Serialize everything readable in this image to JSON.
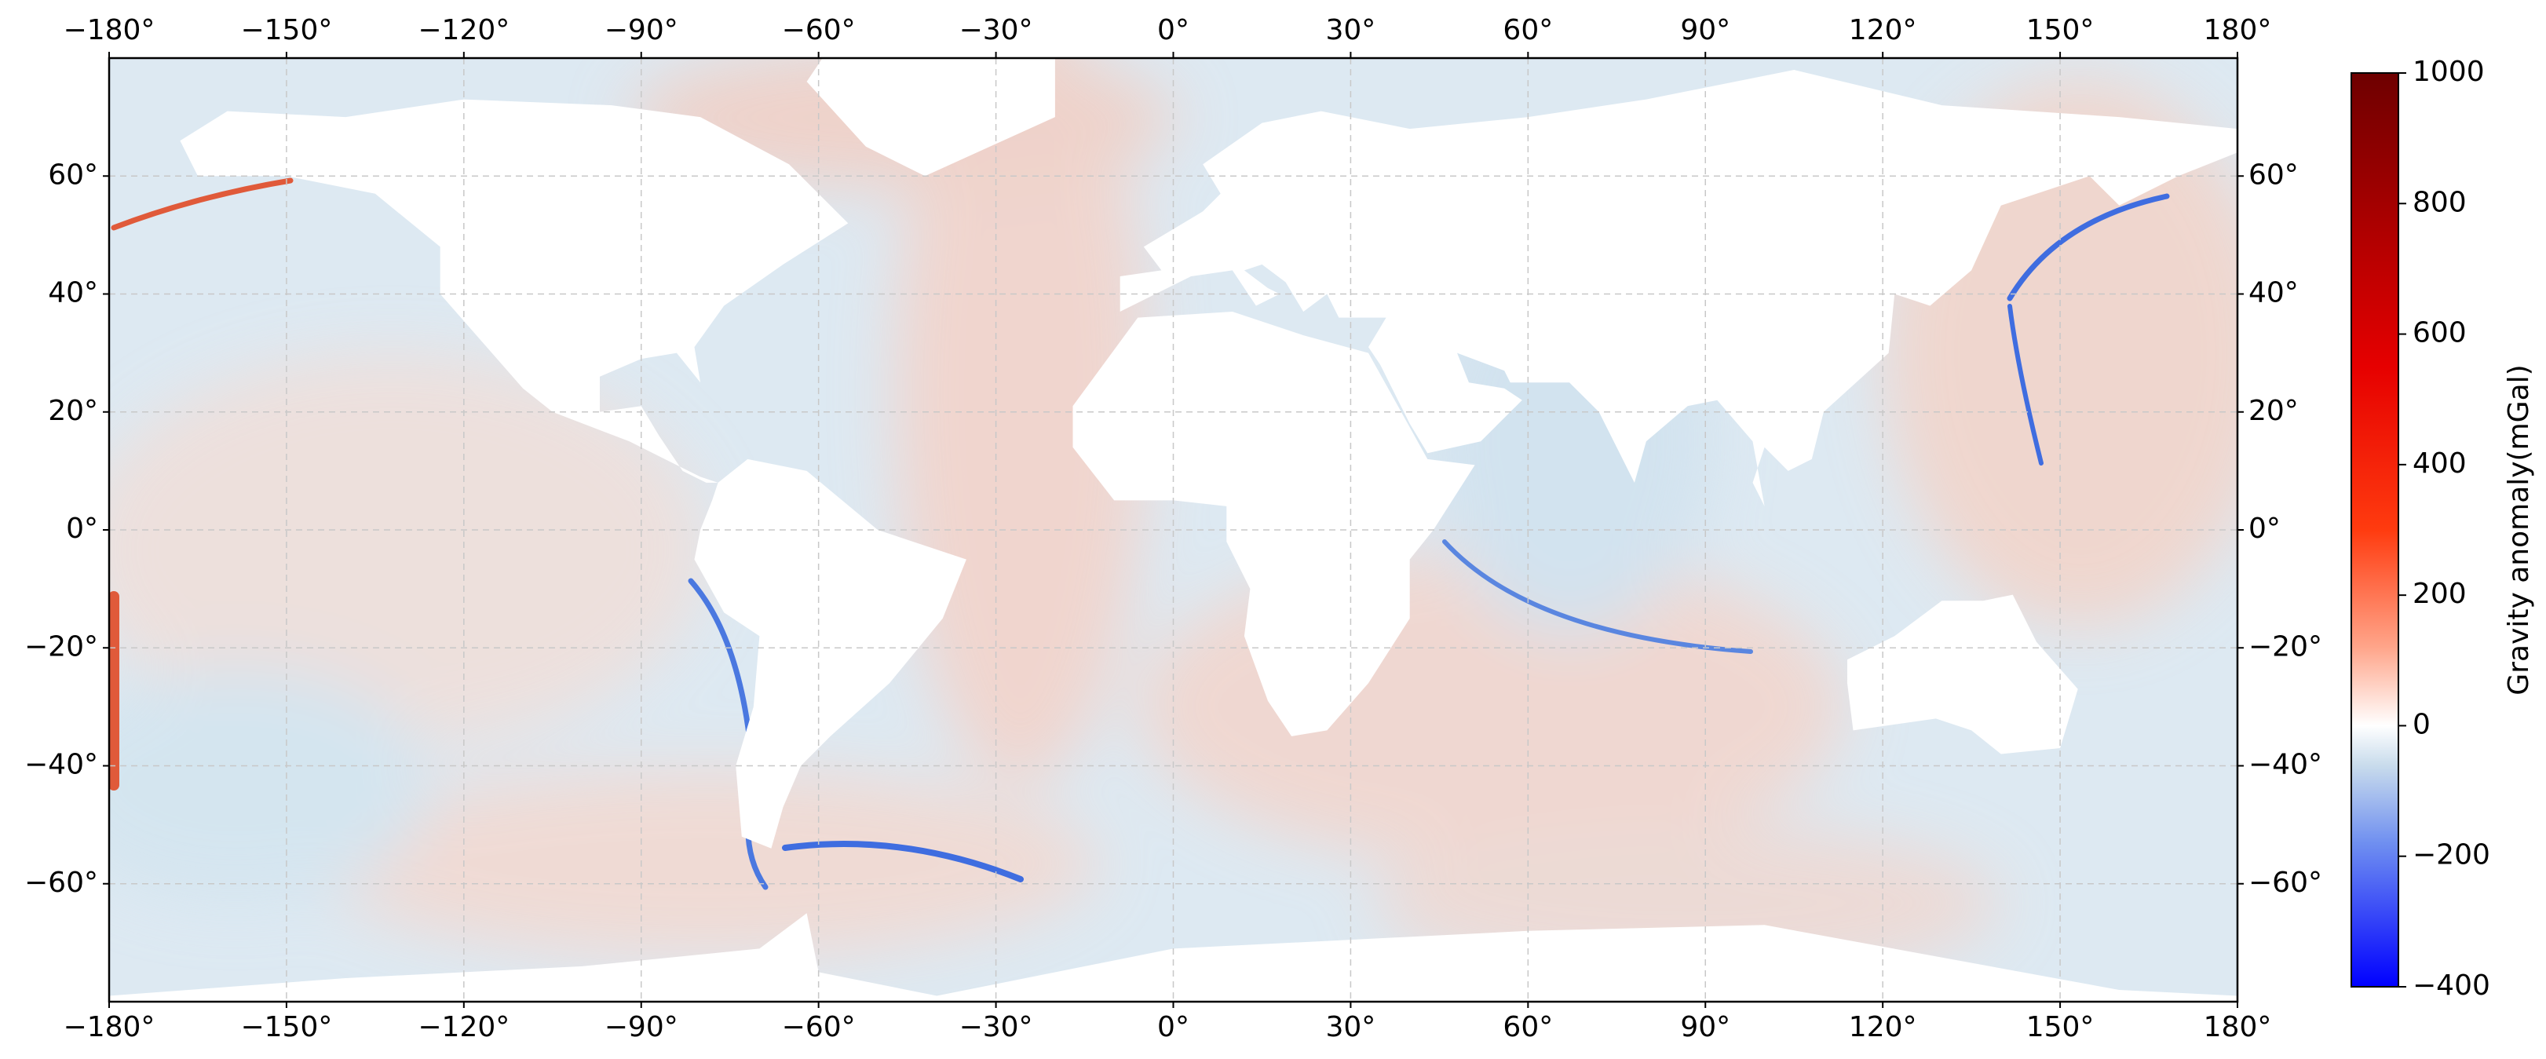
{
  "chart_data": {
    "type": "map",
    "xlim": [
      -180,
      180
    ],
    "ylim": [
      -80,
      80
    ],
    "xticks": [
      {
        "value": -180,
        "label": "−180°"
      },
      {
        "value": -150,
        "label": "−150°"
      },
      {
        "value": -120,
        "label": "−120°"
      },
      {
        "value": -90,
        "label": "−90°"
      },
      {
        "value": -60,
        "label": "−60°"
      },
      {
        "value": -30,
        "label": "−30°"
      },
      {
        "value": 0,
        "label": "0°"
      },
      {
        "value": 30,
        "label": "30°"
      },
      {
        "value": 60,
        "label": "60°"
      },
      {
        "value": 90,
        "label": "90°"
      },
      {
        "value": 120,
        "label": "120°"
      },
      {
        "value": 150,
        "label": "150°"
      },
      {
        "value": 180,
        "label": "180°"
      }
    ],
    "yticks": [
      {
        "value": -60,
        "label": "−60°"
      },
      {
        "value": -40,
        "label": "−40°"
      },
      {
        "value": -20,
        "label": "−20°"
      },
      {
        "value": 0,
        "label": "0°"
      },
      {
        "value": 20,
        "label": "20°"
      },
      {
        "value": 40,
        "label": "40°"
      },
      {
        "value": 60,
        "label": "60°"
      }
    ],
    "grid": true,
    "colorbar": {
      "label": "Gravity anomaly(mGal)",
      "clim": [
        -400,
        1000
      ],
      "ticks": [
        {
          "value": -400,
          "label": "−400"
        },
        {
          "value": -200,
          "label": "−200"
        },
        0,
        200,
        400,
        600,
        800,
        1000
      ]
    }
  }
}
